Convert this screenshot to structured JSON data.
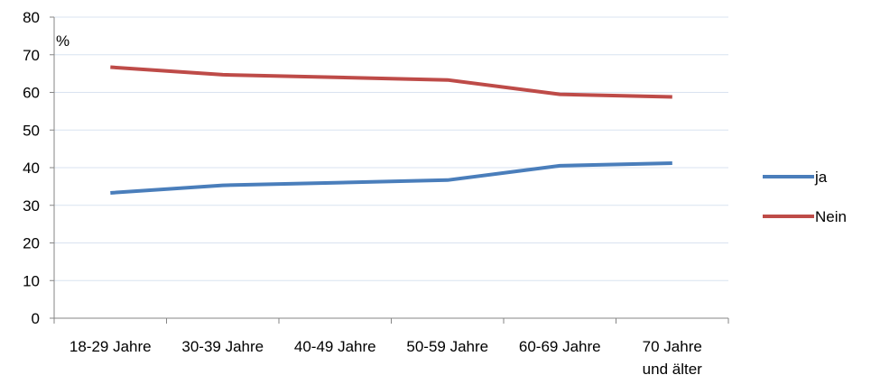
{
  "chart_data": {
    "type": "line",
    "title": "",
    "xlabel": "",
    "ylabel": "%",
    "ylim": [
      0,
      80
    ],
    "yticks": [
      0,
      10,
      20,
      30,
      40,
      50,
      60,
      70,
      80
    ],
    "grid": true,
    "legend_position": "right",
    "categories": [
      [
        "18-29 Jahre"
      ],
      [
        "30-39 Jahre"
      ],
      [
        "40-49 Jahre"
      ],
      [
        "50-59 Jahre"
      ],
      [
        "60-69 Jahre"
      ],
      [
        "70 Jahre",
        "und älter"
      ]
    ],
    "series": [
      {
        "name": "ja",
        "color": "#4a7ebb",
        "values": [
          33.3,
          35.3,
          36.0,
          36.7,
          40.5,
          41.2
        ]
      },
      {
        "name": "Nein",
        "color": "#be4b48",
        "values": [
          66.7,
          64.7,
          64.0,
          63.3,
          59.5,
          58.8
        ]
      }
    ]
  }
}
